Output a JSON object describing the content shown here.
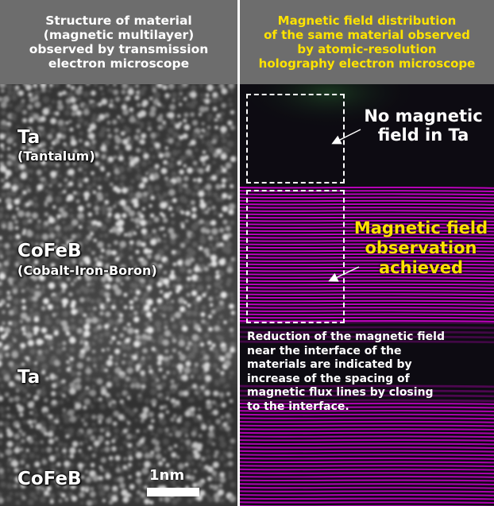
{
  "left_panel": {
    "header": "Structure of material\n(magnetic multilayer)\nobserved by transmission\nelectron microscope",
    "layers": [
      {
        "name": "Ta",
        "detail": "(Tantalum)"
      },
      {
        "name": "CoFeB",
        "detail": "(Cobalt-Iron-Boron)"
      },
      {
        "name": "Ta",
        "detail": ""
      },
      {
        "name": "CoFeB",
        "detail": ""
      }
    ],
    "scale_label": "1nm"
  },
  "right_panel": {
    "header": "Magnetic field distribution\nof the same material observed\nby atomic-resolution\nholography electron microscope",
    "callout_top": "No magnetic\nfield in Ta",
    "callout_middle": "Magnetic field\nobservation\nachieved",
    "note": "Reduction of the magnetic field\nnear the interface of the\nmaterials are indicated by\nincrease of the spacing of\nmagnetic flux lines by closing\nto the interface."
  },
  "colors": {
    "header_bg": "#6d6d6d",
    "highlight_yellow": "#ffe300",
    "flux_magenta": "#e000e0"
  }
}
